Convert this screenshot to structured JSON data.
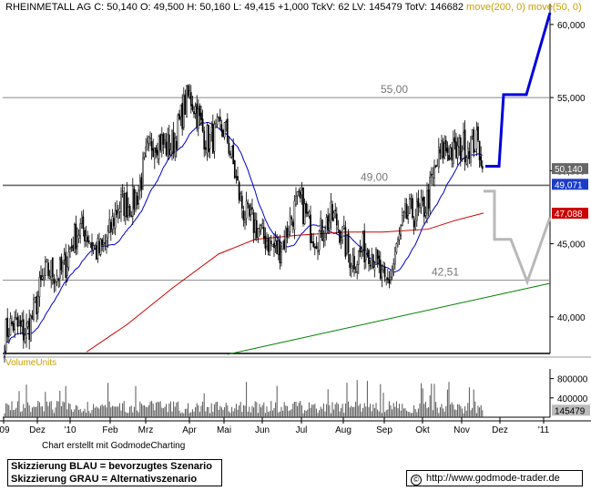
{
  "header": {
    "name": "RHEINMETALL AG",
    "stats": "C: 50,140  O: 49,500  H: 50,160  L: 49,415  +1,000  TckV: 62  LV: 145479  TotV: 146682",
    "ma_label": "move(200, 0)  move(50, 0)"
  },
  "volume_title": "VolumeUnits",
  "credit": "Chart erstellt mit GodmodeCharting",
  "legend": {
    "line1": "Skizzierung BLAU = bevorzugtes Szenario",
    "line2": "Skizzierung GRAU = Alternativszenario"
  },
  "url": "http://www.godmode-trader.de",
  "copyright_symbol": "©",
  "colors": {
    "candles": "#000000",
    "ma50": "#0000cc",
    "ma200": "#cc0000",
    "trendline": "#008000",
    "scenario_blue": "#0000dd",
    "scenario_grey": "#b8b8b8",
    "level_line": "#999999",
    "ma_label": "#c8a000",
    "badge_blue": "#1a3cc8",
    "badge_red": "#cc0000",
    "badge_grey": "#666666"
  },
  "chart_data": {
    "type": "candlestick",
    "x_ticks": [
      "'09",
      "Dez",
      "'10",
      "Feb",
      "Mrz",
      "Apr",
      "Mai",
      "Jun",
      "Jul",
      "Aug",
      "Sep",
      "Okt",
      "Nov",
      "Dez",
      "'11"
    ],
    "y_ticks": [
      40000,
      45000,
      50000,
      55000,
      60000
    ],
    "y_tick_labels": [
      "40,000",
      "45,000",
      "50,000",
      "55,000",
      "60,000"
    ],
    "ylim": [
      37500,
      60800
    ],
    "level_lines": [
      {
        "value": 55.0,
        "label": "55,00"
      },
      {
        "value": 49.0,
        "label": "49,00"
      },
      {
        "value": 42.51,
        "label": "42,51"
      }
    ],
    "last_price_badge": "50,140",
    "ma50_badge": "49,071",
    "ma200_badge": "47,088",
    "close_path": [
      [
        "'09",
        37.9
      ],
      [
        "Dez",
        41.0
      ],
      [
        "'10",
        45.0
      ],
      [
        "Feb",
        45.5
      ],
      [
        "Mrz",
        50.5
      ],
      [
        "Apr",
        54.2
      ],
      [
        "Mai",
        52.0
      ],
      [
        "Jun",
        44.5
      ],
      [
        "Jul",
        47.0
      ],
      [
        "Aug",
        45.5
      ],
      [
        "Sep",
        42.8
      ],
      [
        "Okt",
        48.2
      ],
      [
        "Nov",
        52.6
      ]
    ],
    "volume_ticks": [
      400000,
      800000
    ],
    "volume_tick_labels": [
      "400000",
      "800000"
    ],
    "volume_last": "145479",
    "scenarios": {
      "blue": [
        [
          50.3
        ],
        [
          50.3
        ],
        [
          55.2
        ],
        [
          55.2
        ],
        [
          60.8
        ]
      ],
      "grey": [
        [
          48.6
        ],
        [
          45.3
        ],
        [
          45.3
        ],
        [
          42.4
        ],
        [
          46.8
        ]
      ]
    }
  }
}
